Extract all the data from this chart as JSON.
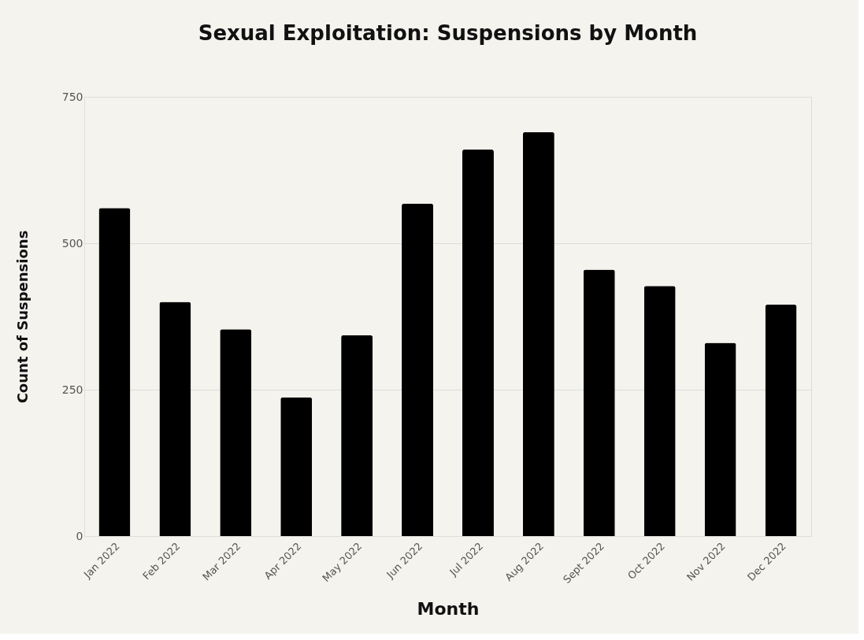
{
  "chart_data": {
    "type": "bar",
    "title": "Sexual Exploitation: Suspensions by Month",
    "xlabel": "Month",
    "ylabel": "Count of Suspensions",
    "categories": [
      "Jan 2022",
      "Feb 2022",
      "Mar 2022",
      "Apr 2022",
      "May 2022",
      "Jun 2022",
      "Jul 2022",
      "Aug 2022",
      "Sept 2022",
      "Oct 2022",
      "Nov 2022",
      "Dec 2022"
    ],
    "values": [
      560,
      400,
      353,
      237,
      343,
      568,
      660,
      690,
      455,
      427,
      330,
      395
    ],
    "color": "#000000",
    "ylim": [
      0,
      750
    ],
    "yticks": [
      0,
      250,
      500,
      750
    ],
    "grid": "y"
  }
}
